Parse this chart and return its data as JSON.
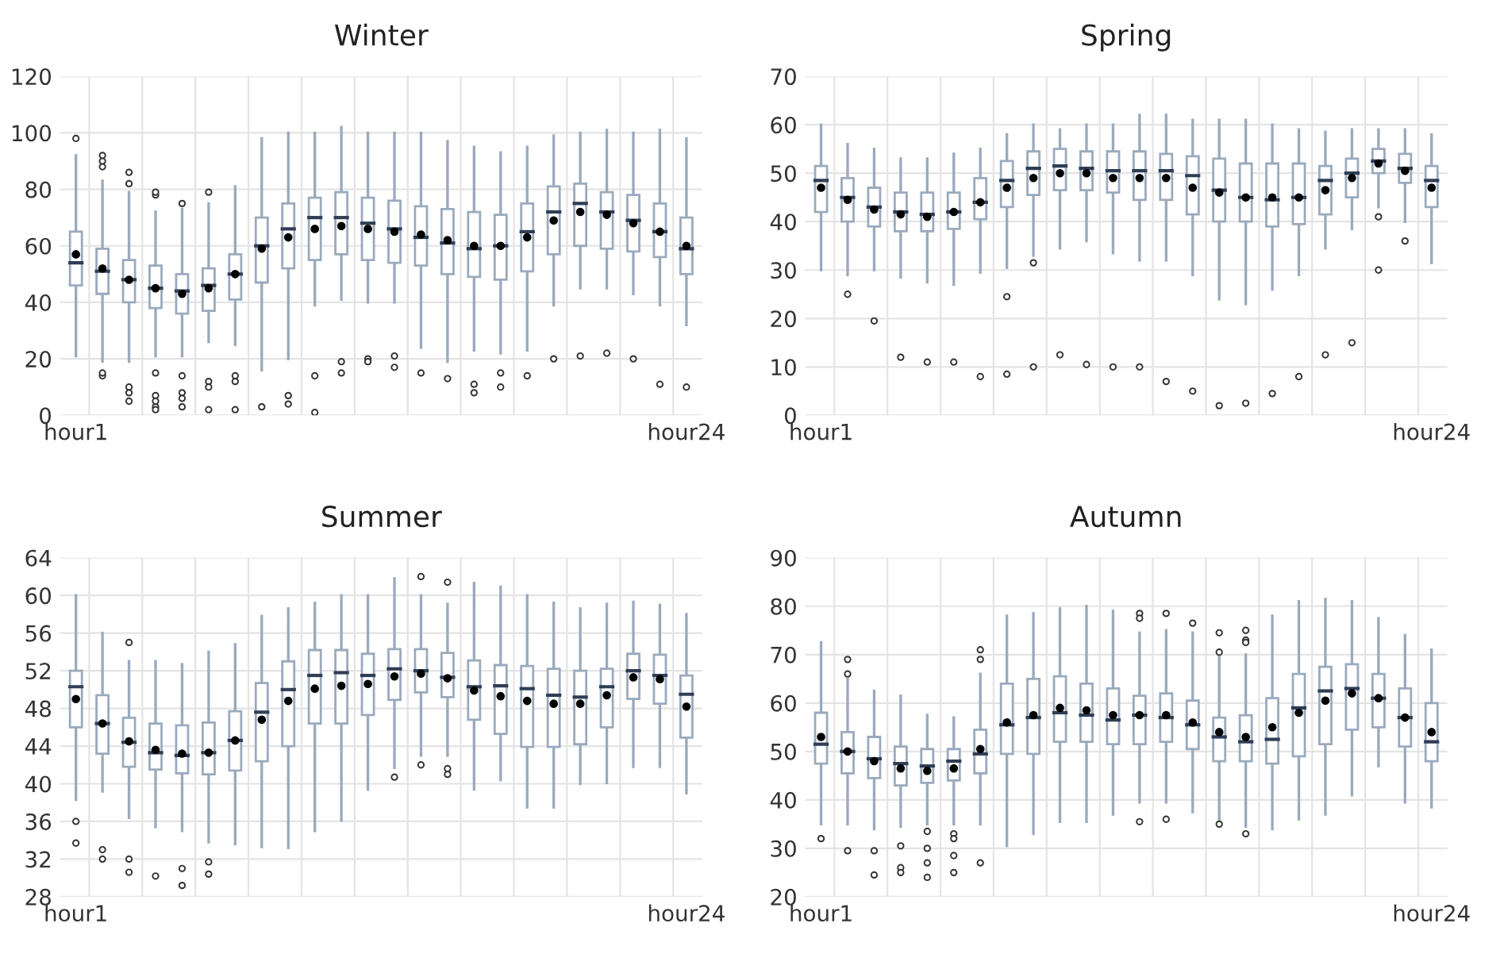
{
  "chart_data": [
    {
      "type": "box",
      "title": "Winter",
      "categories": [
        "hour1",
        null,
        null,
        null,
        null,
        null,
        null,
        null,
        null,
        null,
        null,
        null,
        null,
        null,
        null,
        null,
        null,
        null,
        null,
        null,
        null,
        null,
        null,
        "hour24"
      ],
      "ylim": [
        0,
        120
      ],
      "yticks": [
        0,
        20,
        40,
        60,
        80,
        100,
        120
      ],
      "grid": true,
      "series": [
        {
          "color": "#9aaabd",
          "boxes": [
            {
              "low": 21,
              "q1": 46,
              "median": 54,
              "q3": 65,
              "high": 92,
              "mean": 57,
              "outliers": [
                98
              ]
            },
            {
              "low": 19,
              "q1": 43,
              "median": 51,
              "q3": 59,
              "high": 83,
              "mean": 52,
              "outliers": [
                88,
                90,
                92,
                14,
                15
              ]
            },
            {
              "low": 19,
              "q1": 40,
              "median": 48,
              "q3": 55,
              "high": 79,
              "mean": 48,
              "outliers": [
                82,
                86,
                10,
                8,
                5
              ]
            },
            {
              "low": 21,
              "q1": 38,
              "median": 45,
              "q3": 53,
              "high": 72,
              "mean": 45,
              "outliers": [
                78,
                79,
                15,
                7,
                5,
                3,
                2
              ]
            },
            {
              "low": 21,
              "q1": 36,
              "median": 44,
              "q3": 50,
              "high": 73,
              "mean": 43,
              "outliers": [
                75,
                14,
                8,
                6,
                3
              ]
            },
            {
              "low": 26,
              "q1": 37,
              "median": 46,
              "q3": 52,
              "high": 75,
              "mean": 45,
              "outliers": [
                79,
                12,
                10,
                2
              ]
            },
            {
              "low": 25,
              "q1": 41,
              "median": 50,
              "q3": 57,
              "high": 81,
              "mean": 50,
              "outliers": [
                14,
                12,
                2
              ]
            },
            {
              "low": 16,
              "q1": 47,
              "median": 60,
              "q3": 70,
              "high": 98,
              "mean": 59,
              "outliers": [
                3
              ]
            },
            {
              "low": 20,
              "q1": 52,
              "median": 66,
              "q3": 75,
              "high": 100,
              "mean": 63,
              "outliers": [
                7,
                4
              ]
            },
            {
              "low": 39,
              "q1": 55,
              "median": 70,
              "q3": 77,
              "high": 100,
              "mean": 66,
              "outliers": [
                14,
                1
              ]
            },
            {
              "low": 41,
              "q1": 57,
              "median": 70,
              "q3": 79,
              "high": 102,
              "mean": 67,
              "outliers": [
                19,
                15
              ]
            },
            {
              "low": 40,
              "q1": 55,
              "median": 68,
              "q3": 77,
              "high": 100,
              "mean": 66,
              "outliers": [
                20,
                19
              ]
            },
            {
              "low": 40,
              "q1": 54,
              "median": 66,
              "q3": 76,
              "high": 100,
              "mean": 65,
              "outliers": [
                21,
                17
              ]
            },
            {
              "low": 24,
              "q1": 53,
              "median": 63,
              "q3": 74,
              "high": 100,
              "mean": 64,
              "outliers": [
                15
              ]
            },
            {
              "low": 19,
              "q1": 50,
              "median": 61,
              "q3": 73,
              "high": 97,
              "mean": 62,
              "outliers": [
                13
              ]
            },
            {
              "low": 23,
              "q1": 49,
              "median": 59,
              "q3": 72,
              "high": 95,
              "mean": 60,
              "outliers": [
                11,
                8
              ]
            },
            {
              "low": 22,
              "q1": 48,
              "median": 60,
              "q3": 71,
              "high": 93,
              "mean": 60,
              "outliers": [
                15,
                10
              ]
            },
            {
              "low": 23,
              "q1": 51,
              "median": 65,
              "q3": 75,
              "high": 95,
              "mean": 63,
              "outliers": [
                14
              ]
            },
            {
              "low": 39,
              "q1": 57,
              "median": 72,
              "q3": 81,
              "high": 99,
              "mean": 69,
              "outliers": [
                20
              ]
            },
            {
              "low": 45,
              "q1": 60,
              "median": 75,
              "q3": 82,
              "high": 100,
              "mean": 72,
              "outliers": [
                21
              ]
            },
            {
              "low": 45,
              "q1": 59,
              "median": 72,
              "q3": 79,
              "high": 101,
              "mean": 71,
              "outliers": [
                22
              ]
            },
            {
              "low": 43,
              "q1": 58,
              "median": 69,
              "q3": 78,
              "high": 100,
              "mean": 68,
              "outliers": [
                20
              ]
            },
            {
              "low": 39,
              "q1": 56,
              "median": 65,
              "q3": 75,
              "high": 101,
              "mean": 65,
              "outliers": [
                11
              ]
            },
            {
              "low": 32,
              "q1": 50,
              "median": 59,
              "q3": 70,
              "high": 98,
              "mean": 60,
              "outliers": [
                10
              ]
            }
          ]
        }
      ]
    },
    {
      "type": "box",
      "title": "Spring",
      "categories": [
        "hour1",
        null,
        null,
        null,
        null,
        null,
        null,
        null,
        null,
        null,
        null,
        null,
        null,
        null,
        null,
        null,
        null,
        null,
        null,
        null,
        null,
        null,
        null,
        "hour24"
      ],
      "ylim": [
        0,
        70
      ],
      "yticks": [
        0,
        10,
        20,
        30,
        40,
        50,
        60,
        70
      ],
      "grid": true,
      "series": [
        {
          "color": "#9aaabd",
          "boxes": [
            {
              "low": 30,
              "q1": 42,
              "median": 48.5,
              "q3": 51.5,
              "high": 60,
              "mean": 47
            },
            {
              "low": 29,
              "q1": 40,
              "median": 45,
              "q3": 49,
              "high": 56,
              "mean": 44.5,
              "outliers": [
                25
              ]
            },
            {
              "low": 30,
              "q1": 39,
              "median": 43,
              "q3": 47,
              "high": 55,
              "mean": 42.5,
              "outliers": [
                19.5
              ]
            },
            {
              "low": 28.5,
              "q1": 38,
              "median": 42,
              "q3": 46,
              "high": 53,
              "mean": 41.5,
              "outliers": [
                12
              ]
            },
            {
              "low": 27.5,
              "q1": 38,
              "median": 41.5,
              "q3": 46,
              "high": 53,
              "mean": 41,
              "outliers": [
                11
              ]
            },
            {
              "low": 27,
              "q1": 38.5,
              "median": 42,
              "q3": 46,
              "high": 54,
              "mean": 42,
              "outliers": [
                11
              ]
            },
            {
              "low": 29.5,
              "q1": 40.5,
              "median": 44,
              "q3": 49,
              "high": 55,
              "mean": 44,
              "outliers": [
                8
              ]
            },
            {
              "low": 30.5,
              "q1": 43,
              "median": 48.5,
              "q3": 52.5,
              "high": 58,
              "mean": 47,
              "outliers": [
                24.5,
                8.5
              ]
            },
            {
              "low": 33,
              "q1": 45.5,
              "median": 51,
              "q3": 54.5,
              "high": 60,
              "mean": 49,
              "outliers": [
                31.5,
                10
              ]
            },
            {
              "low": 34.5,
              "q1": 46.5,
              "median": 51.5,
              "q3": 55,
              "high": 59,
              "mean": 50,
              "outliers": [
                12.5
              ]
            },
            {
              "low": 36,
              "q1": 46.5,
              "median": 51,
              "q3": 54.5,
              "high": 60,
              "mean": 50,
              "outliers": [
                10.5
              ]
            },
            {
              "low": 33.5,
              "q1": 46,
              "median": 50.5,
              "q3": 54.5,
              "high": 60,
              "mean": 49,
              "outliers": [
                10
              ]
            },
            {
              "low": 32,
              "q1": 44.5,
              "median": 50.5,
              "q3": 54.5,
              "high": 62,
              "mean": 49,
              "outliers": [
                10
              ]
            },
            {
              "low": 32,
              "q1": 44.5,
              "median": 50.5,
              "q3": 54,
              "high": 62,
              "mean": 49,
              "outliers": [
                7
              ]
            },
            {
              "low": 29,
              "q1": 41.5,
              "median": 49.5,
              "q3": 53.5,
              "high": 61,
              "mean": 47,
              "outliers": [
                5
              ]
            },
            {
              "low": 24,
              "q1": 40,
              "median": 46.5,
              "q3": 53,
              "high": 61,
              "mean": 46,
              "outliers": [
                2
              ]
            },
            {
              "low": 23,
              "q1": 40,
              "median": 45,
              "q3": 52,
              "high": 61,
              "mean": 45,
              "outliers": [
                2.5
              ]
            },
            {
              "low": 26,
              "q1": 39,
              "median": 44.5,
              "q3": 52,
              "high": 60,
              "mean": 45,
              "outliers": [
                4.5
              ]
            },
            {
              "low": 29,
              "q1": 39.5,
              "median": 45,
              "q3": 52,
              "high": 59,
              "mean": 45,
              "outliers": [
                8
              ]
            },
            {
              "low": 34.5,
              "q1": 41.5,
              "median": 48.5,
              "q3": 51.5,
              "high": 58.5,
              "mean": 46.5,
              "outliers": [
                12.5
              ]
            },
            {
              "low": 38.5,
              "q1": 45,
              "median": 50,
              "q3": 53,
              "high": 59,
              "mean": 49,
              "outliers": [
                15
              ]
            },
            {
              "low": 43,
              "q1": 50,
              "median": 52.5,
              "q3": 55,
              "high": 59,
              "mean": 52,
              "outliers": [
                41,
                30
              ]
            },
            {
              "low": 40,
              "q1": 48,
              "median": 51,
              "q3": 54,
              "high": 59,
              "mean": 50.5,
              "outliers": [
                36
              ]
            },
            {
              "low": 31.5,
              "q1": 43,
              "median": 48.5,
              "q3": 51.5,
              "high": 58,
              "mean": 47
            }
          ]
        }
      ]
    },
    {
      "type": "box",
      "title": "Summer",
      "categories": [
        "hour1",
        null,
        null,
        null,
        null,
        null,
        null,
        null,
        null,
        null,
        null,
        null,
        null,
        null,
        null,
        null,
        null,
        null,
        null,
        null,
        null,
        null,
        null,
        "hour24"
      ],
      "ylim": [
        28,
        64
      ],
      "yticks": [
        28,
        32,
        36,
        40,
        44,
        48,
        52,
        56,
        60,
        64
      ],
      "grid": true,
      "series": [
        {
          "color": "#9aaabd",
          "boxes": [
            {
              "low": 38.3,
              "q1": 46,
              "median": 50.3,
              "q3": 52,
              "high": 60,
              "mean": 49,
              "outliers": [
                36,
                33.7
              ]
            },
            {
              "low": 39.2,
              "q1": 43.2,
              "median": 46.4,
              "q3": 49.4,
              "high": 56,
              "mean": 46.4,
              "outliers": [
                33,
                32
              ]
            },
            {
              "low": 36.4,
              "q1": 41.8,
              "median": 44.4,
              "q3": 47,
              "high": 53,
              "mean": 44.5,
              "outliers": [
                55,
                32,
                30.6
              ]
            },
            {
              "low": 35.4,
              "q1": 41.5,
              "median": 43.3,
              "q3": 46.4,
              "high": 53,
              "mean": 43.6,
              "outliers": [
                30.2
              ]
            },
            {
              "low": 35,
              "q1": 41.1,
              "median": 43,
              "q3": 46.2,
              "high": 52.7,
              "mean": 43.2,
              "outliers": [
                31,
                29.2
              ]
            },
            {
              "low": 33.8,
              "q1": 41,
              "median": 43.3,
              "q3": 46.5,
              "high": 54,
              "mean": 43.3,
              "outliers": [
                31.7,
                30.4
              ]
            },
            {
              "low": 33.6,
              "q1": 41.4,
              "median": 44.6,
              "q3": 47.7,
              "high": 54.8,
              "mean": 44.6
            },
            {
              "low": 33.3,
              "q1": 42.4,
              "median": 47.6,
              "q3": 50.7,
              "high": 57.8,
              "mean": 46.8
            },
            {
              "low": 33.2,
              "q1": 44,
              "median": 50,
              "q3": 53,
              "high": 58.6,
              "mean": 48.8
            },
            {
              "low": 35,
              "q1": 46.4,
              "median": 51.5,
              "q3": 54.2,
              "high": 59.2,
              "mean": 50.1
            },
            {
              "low": 36.1,
              "q1": 46.4,
              "median": 51.8,
              "q3": 54.2,
              "high": 60,
              "mean": 50.4
            },
            {
              "low": 39.4,
              "q1": 47.3,
              "median": 51.5,
              "q3": 53.8,
              "high": 60,
              "mean": 50.6
            },
            {
              "low": 41.7,
              "q1": 48.9,
              "median": 52.2,
              "q3": 54.3,
              "high": 61.8,
              "mean": 51.4,
              "outliers": [
                40.7
              ]
            },
            {
              "low": 43,
              "q1": 49.7,
              "median": 52,
              "q3": 54.3,
              "high": 60,
              "mean": 51.7,
              "outliers": [
                62,
                42
              ]
            },
            {
              "low": 43,
              "q1": 49.2,
              "median": 51.3,
              "q3": 53.9,
              "high": 59.1,
              "mean": 51.2,
              "outliers": [
                61.4,
                41.6,
                41
              ]
            },
            {
              "low": 39.4,
              "q1": 46.8,
              "median": 50.3,
              "q3": 53.1,
              "high": 61.3,
              "mean": 49.9
            },
            {
              "low": 40.4,
              "q1": 45.3,
              "median": 50.4,
              "q3": 52.6,
              "high": 60.9,
              "mean": 49.3
            },
            {
              "low": 37.5,
              "q1": 43.9,
              "median": 50.1,
              "q3": 52.5,
              "high": 60,
              "mean": 48.8
            },
            {
              "low": 37.5,
              "q1": 43.9,
              "median": 49.4,
              "q3": 52.2,
              "high": 59.2,
              "mean": 48.5
            },
            {
              "low": 40,
              "q1": 44.2,
              "median": 49.2,
              "q3": 52,
              "high": 58.6,
              "mean": 48.5
            },
            {
              "low": 40.1,
              "q1": 46,
              "median": 50.3,
              "q3": 52.2,
              "high": 59.1,
              "mean": 49.4
            },
            {
              "low": 41.8,
              "q1": 49,
              "median": 52,
              "q3": 53.8,
              "high": 59.3,
              "mean": 51.3
            },
            {
              "low": 41.8,
              "q1": 48.5,
              "median": 51.5,
              "q3": 53.7,
              "high": 59,
              "mean": 51.1
            },
            {
              "low": 39,
              "q1": 44.9,
              "median": 49.5,
              "q3": 51.5,
              "high": 58,
              "mean": 48.2
            }
          ]
        }
      ]
    },
    {
      "type": "box",
      "title": "Autumn",
      "categories": [
        "hour1",
        null,
        null,
        null,
        null,
        null,
        null,
        null,
        null,
        null,
        null,
        null,
        null,
        null,
        null,
        null,
        null,
        null,
        null,
        null,
        null,
        null,
        null,
        "hour24"
      ],
      "ylim": [
        20,
        90
      ],
      "yticks": [
        20,
        30,
        40,
        50,
        60,
        70,
        80,
        90
      ],
      "grid": true,
      "series": [
        {
          "color": "#9aaabd",
          "boxes": [
            {
              "low": 35,
              "q1": 47.5,
              "median": 51.5,
              "q3": 58,
              "high": 72.5,
              "mean": 53,
              "outliers": [
                32
              ]
            },
            {
              "low": 35,
              "q1": 45.5,
              "median": 50,
              "q3": 54,
              "high": 65,
              "mean": 50,
              "outliers": [
                69,
                66,
                29.5
              ]
            },
            {
              "low": 34,
              "q1": 44.5,
              "median": 48.5,
              "q3": 53,
              "high": 62.5,
              "mean": 48,
              "outliers": [
                29.5,
                24.5
              ]
            },
            {
              "low": 34.5,
              "q1": 43,
              "median": 47.5,
              "q3": 51,
              "high": 61.5,
              "mean": 46.5,
              "outliers": [
                30.5,
                26,
                25
              ]
            },
            {
              "low": 35,
              "q1": 43.5,
              "median": 47,
              "q3": 50.5,
              "high": 57.5,
              "mean": 46,
              "outliers": [
                33.5,
                30,
                27,
                24
              ]
            },
            {
              "low": 35,
              "q1": 44,
              "median": 48,
              "q3": 50.5,
              "high": 57,
              "mean": 46.5,
              "outliers": [
                33,
                32,
                28.5,
                25
              ]
            },
            {
              "low": 35,
              "q1": 45.5,
              "median": 49.5,
              "q3": 54.5,
              "high": 66,
              "mean": 50.5,
              "outliers": [
                71,
                69,
                27
              ]
            },
            {
              "low": 30.5,
              "q1": 49.5,
              "median": 55.5,
              "q3": 64,
              "high": 78,
              "mean": 56
            },
            {
              "low": 33,
              "q1": 49.5,
              "median": 57,
              "q3": 65,
              "high": 78.5,
              "mean": 57.5
            },
            {
              "low": 35.5,
              "q1": 52,
              "median": 58,
              "q3": 65.5,
              "high": 79.5,
              "mean": 59
            },
            {
              "low": 35.5,
              "q1": 52,
              "median": 57.5,
              "q3": 64,
              "high": 80,
              "mean": 58.5
            },
            {
              "low": 37,
              "q1": 51.5,
              "median": 56.5,
              "q3": 63,
              "high": 79,
              "mean": 57.5
            },
            {
              "low": 39.5,
              "q1": 51.5,
              "median": 57.5,
              "q3": 61.5,
              "high": 74.5,
              "mean": 57.5,
              "outliers": [
                78.5,
                77.5,
                35.5
              ]
            },
            {
              "low": 39.5,
              "q1": 52,
              "median": 57,
              "q3": 62,
              "high": 75,
              "mean": 57.5,
              "outliers": [
                78.5,
                36
              ]
            },
            {
              "low": 37.5,
              "q1": 50.5,
              "median": 55.5,
              "q3": 60.5,
              "high": 74.5,
              "mean": 56,
              "outliers": [
                76.5
              ]
            },
            {
              "low": 36,
              "q1": 48,
              "median": 53,
              "q3": 57,
              "high": 70,
              "mean": 54,
              "outliers": [
                74.5,
                70.5,
                35
              ]
            },
            {
              "low": 34.5,
              "q1": 48,
              "median": 52,
              "q3": 57.5,
              "high": 70,
              "mean": 53,
              "outliers": [
                75,
                73,
                72.5,
                33
              ]
            },
            {
              "low": 34,
              "q1": 47.5,
              "median": 52.5,
              "q3": 61,
              "high": 78,
              "mean": 55
            },
            {
              "low": 36,
              "q1": 49,
              "median": 59,
              "q3": 66,
              "high": 81,
              "mean": 58
            },
            {
              "low": 37,
              "q1": 51.5,
              "median": 62.5,
              "q3": 67.5,
              "high": 81.5,
              "mean": 60.5
            },
            {
              "low": 41,
              "q1": 54.5,
              "median": 63,
              "q3": 68,
              "high": 81,
              "mean": 62
            },
            {
              "low": 47,
              "q1": 55,
              "median": 61,
              "q3": 66,
              "high": 77.5,
              "mean": 61
            },
            {
              "low": 39.5,
              "q1": 51,
              "median": 57,
              "q3": 63,
              "high": 74,
              "mean": 57
            },
            {
              "low": 38.5,
              "q1": 48,
              "median": 52,
              "q3": 60,
              "high": 71,
              "mean": 54
            }
          ]
        }
      ]
    }
  ]
}
